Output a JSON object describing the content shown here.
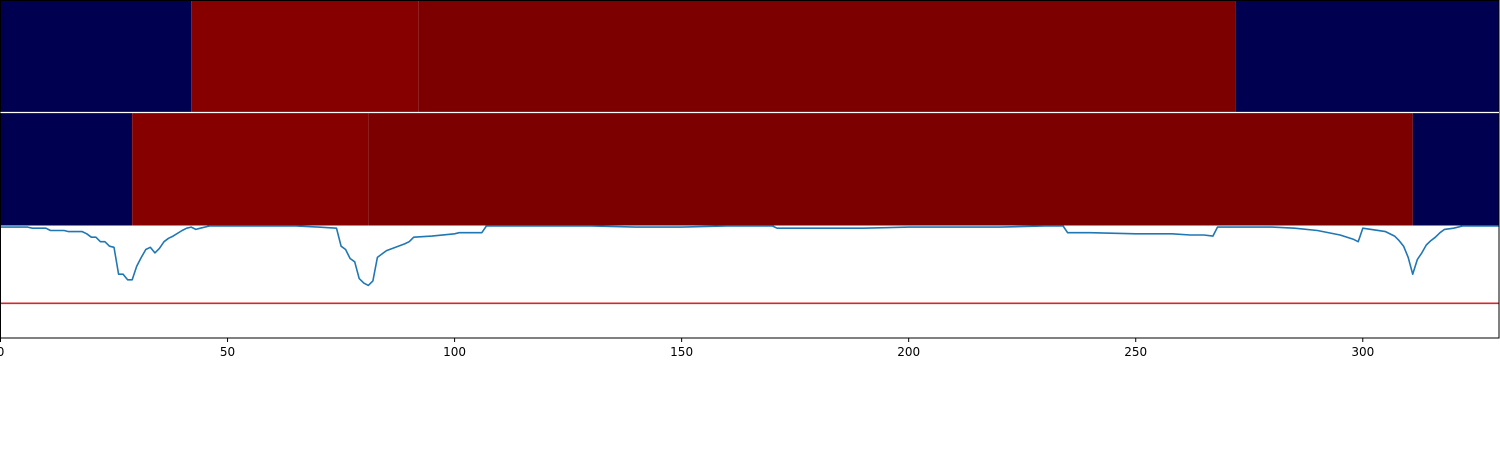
{
  "chart_data": [
    {
      "type": "heatmap",
      "xlim": [
        0,
        330
      ],
      "colors": {
        "low": "#000050",
        "mid": "#870000",
        "high": "#7c0000"
      },
      "segments": [
        {
          "start": 0,
          "end": 42,
          "level": "low"
        },
        {
          "start": 42,
          "end": 92,
          "level": "mid"
        },
        {
          "start": 92,
          "end": 272,
          "level": "high"
        },
        {
          "start": 272,
          "end": 330,
          "level": "low"
        }
      ]
    },
    {
      "type": "heatmap",
      "xlim": [
        0,
        330
      ],
      "colors": {
        "low": "#000050",
        "mid": "#870000",
        "high": "#7c0000"
      },
      "segments": [
        {
          "start": 0,
          "end": 29,
          "level": "low"
        },
        {
          "start": 29,
          "end": 81,
          "level": "mid"
        },
        {
          "start": 81,
          "end": 311,
          "level": "high"
        },
        {
          "start": 311,
          "end": 330,
          "level": "low"
        }
      ]
    },
    {
      "type": "line",
      "xlim": [
        0,
        330
      ],
      "ylim": [
        0,
        1
      ],
      "xticks": [
        0,
        50,
        100,
        150,
        200,
        250,
        300
      ],
      "xtick_labels": [
        "0",
        "50",
        "100",
        "150",
        "200",
        "250",
        "300"
      ],
      "grid": false,
      "threshold": {
        "y": 0.31,
        "color": "#d62728"
      },
      "series": [
        {
          "color": "#1f77b4",
          "x": [
            0,
            6,
            7,
            10,
            11,
            14,
            15,
            18,
            19,
            20,
            21,
            22,
            23,
            24,
            25,
            26,
            27,
            28,
            29,
            30,
            31,
            32,
            33,
            34,
            35,
            36,
            37,
            38,
            40,
            41,
            42,
            43,
            44,
            46,
            48,
            50,
            55,
            60,
            65,
            70,
            74,
            75,
            76,
            77,
            78,
            79,
            80,
            81,
            82,
            83,
            84,
            85,
            87,
            89,
            90,
            91,
            95,
            100,
            101,
            106,
            107,
            110,
            120,
            130,
            140,
            150,
            160,
            170,
            171,
            180,
            190,
            200,
            210,
            220,
            230,
            234,
            235,
            240,
            250,
            258,
            262,
            265,
            267,
            268,
            275,
            280,
            285,
            290,
            295,
            298,
            299,
            300,
            305,
            307,
            308,
            309,
            310,
            311,
            312,
            313,
            314,
            315,
            316,
            317,
            318,
            320,
            322,
            325,
            330
          ],
          "y": [
            0.99,
            0.99,
            0.98,
            0.98,
            0.96,
            0.96,
            0.95,
            0.95,
            0.93,
            0.9,
            0.9,
            0.86,
            0.86,
            0.82,
            0.81,
            0.57,
            0.57,
            0.52,
            0.52,
            0.64,
            0.72,
            0.79,
            0.81,
            0.76,
            0.8,
            0.86,
            0.89,
            0.91,
            0.96,
            0.98,
            0.99,
            0.97,
            0.98,
            1.0,
            1.0,
            1.0,
            1.0,
            1.0,
            1.0,
            0.99,
            0.98,
            0.82,
            0.79,
            0.71,
            0.68,
            0.53,
            0.49,
            0.47,
            0.51,
            0.72,
            0.75,
            0.78,
            0.81,
            0.84,
            0.86,
            0.9,
            0.91,
            0.93,
            0.94,
            0.94,
            1.0,
            1.0,
            1.0,
            1.0,
            0.99,
            0.99,
            1.0,
            1.0,
            0.98,
            0.98,
            0.98,
            0.99,
            0.99,
            0.99,
            1.0,
            1.0,
            0.94,
            0.94,
            0.93,
            0.93,
            0.92,
            0.92,
            0.91,
            0.99,
            0.99,
            0.99,
            0.98,
            0.96,
            0.92,
            0.88,
            0.86,
            0.98,
            0.95,
            0.91,
            0.87,
            0.82,
            0.72,
            0.57,
            0.7,
            0.76,
            0.83,
            0.87,
            0.9,
            0.94,
            0.97,
            0.98,
            1.0,
            1.0,
            1.0
          ]
        }
      ]
    }
  ]
}
